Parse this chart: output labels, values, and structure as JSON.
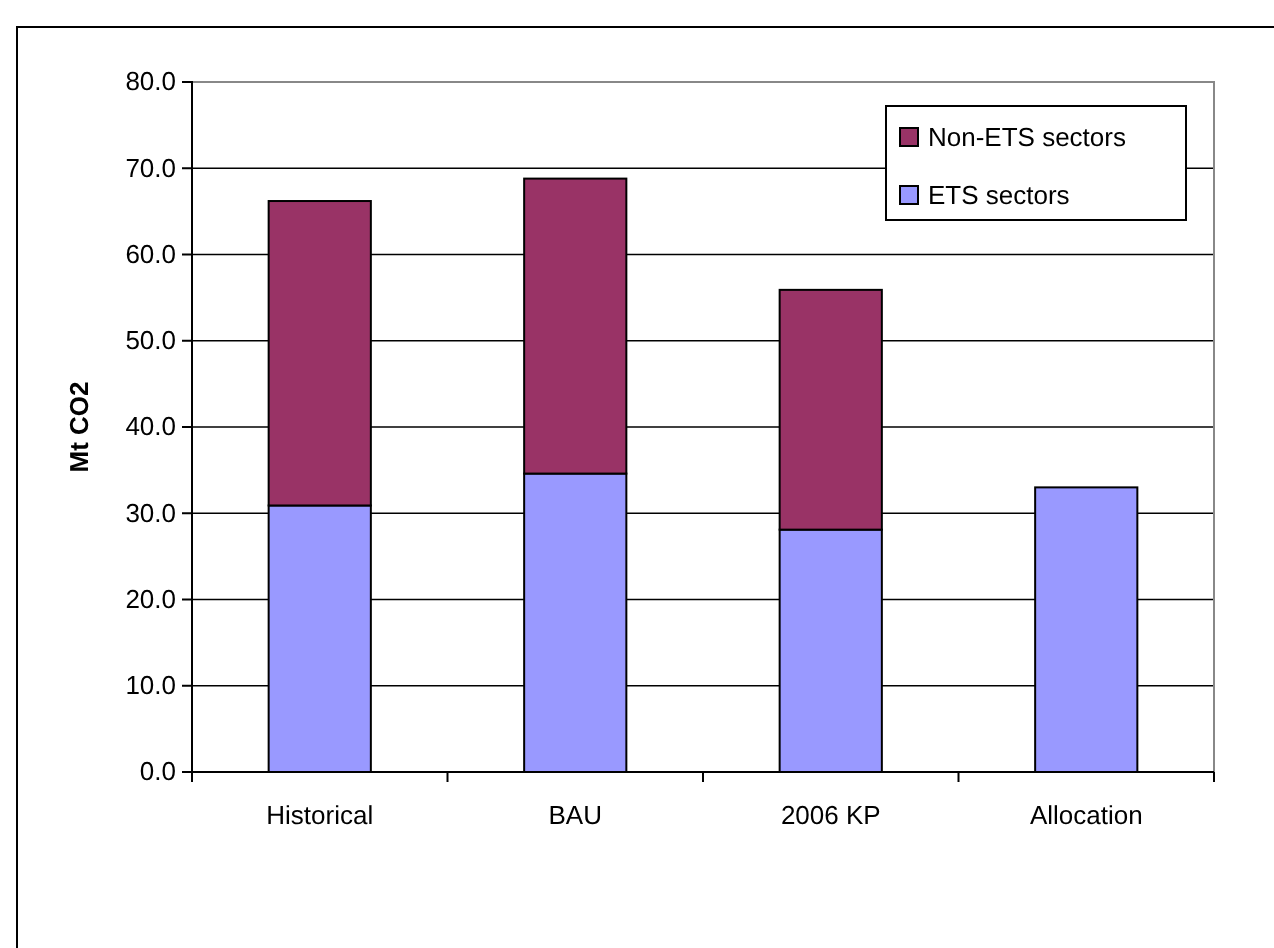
{
  "chart_data": {
    "type": "bar",
    "ylabel": "Mt CO2",
    "categories": [
      "Historical",
      "BAU",
      "2006 KP",
      "Allocation"
    ],
    "stacked": true,
    "series": [
      {
        "name": "ETS sectors",
        "color": "#9999ff",
        "values": [
          30.9,
          34.6,
          28.1,
          33.0
        ]
      },
      {
        "name": "Non-ETS sectors",
        "color": "#993366",
        "values": [
          35.3,
          34.2,
          27.8,
          null
        ]
      }
    ],
    "ylim": [
      0,
      80
    ],
    "yticks": [
      {
        "value": 0,
        "label": "0.0"
      },
      {
        "value": 10,
        "label": "10.0"
      },
      {
        "value": 20,
        "label": "20.0"
      },
      {
        "value": 30,
        "label": "30.0"
      },
      {
        "value": 40,
        "label": "40.0"
      },
      {
        "value": 50,
        "label": "50.0"
      },
      {
        "value": 60,
        "label": "60.0"
      },
      {
        "value": 70,
        "label": "70.0"
      },
      {
        "value": 80,
        "label": "80.0"
      }
    ],
    "grid": "y",
    "legend": "top right"
  }
}
